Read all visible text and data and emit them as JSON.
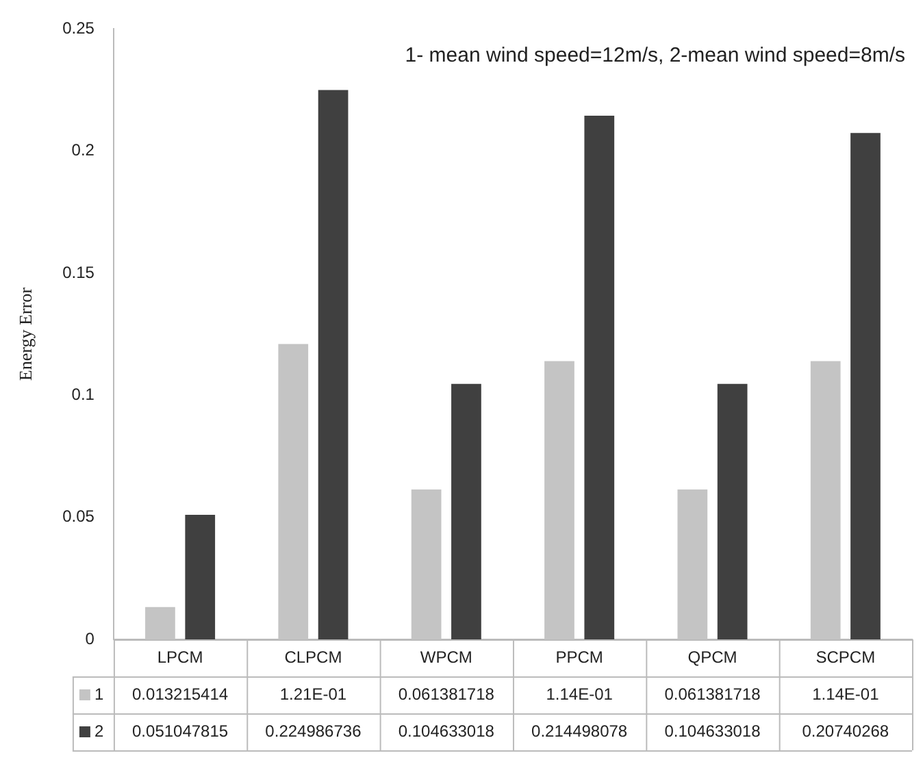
{
  "chart_data": {
    "type": "bar",
    "ylabel": "Energy Error",
    "categories": [
      "LPCM",
      "CLPCM",
      "WPCM",
      "PPCM",
      "QPCM",
      "SCPCM"
    ],
    "series": [
      {
        "name": "1",
        "color": "#c4c4c4",
        "values": [
          0.013215414,
          0.121,
          0.061381718,
          0.114,
          0.061381718,
          0.114
        ],
        "value_labels": [
          "0.013215414",
          "1.21E-01",
          "0.061381718",
          "1.14E-01",
          "0.061381718",
          "1.14E-01"
        ]
      },
      {
        "name": "2",
        "color": "#404040",
        "values": [
          0.051047815,
          0.224986736,
          0.104633018,
          0.214498078,
          0.104633018,
          0.20740268
        ],
        "value_labels": [
          "0.051047815",
          "0.224986736",
          "0.104633018",
          "0.214498078",
          "0.104633018",
          "0.20740268"
        ]
      }
    ],
    "ylim": [
      0,
      0.25
    ],
    "yticks": [
      0,
      0.05,
      0.1,
      0.15,
      0.2,
      0.25
    ],
    "grid": false,
    "legend": "bottom",
    "annotations": [
      "1- mean wind speed=12m/s, 2-mean wind speed=8m/s"
    ]
  }
}
